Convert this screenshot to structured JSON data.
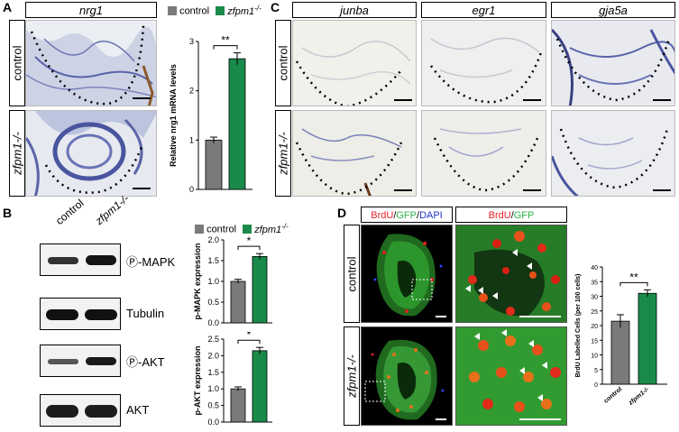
{
  "panels": {
    "A": {
      "label": "A",
      "gene": "nrg1",
      "rows": [
        "control",
        "zfpm1-/-"
      ]
    },
    "B": {
      "label": "B",
      "lanes": [
        "control",
        "zfpm1-/-"
      ],
      "bands": [
        "Ⓟ-MAPK",
        "Tubulin",
        "Ⓟ-AKT",
        "AKT"
      ]
    },
    "C": {
      "label": "C",
      "genes": [
        "junba",
        "egr1",
        "gja5a"
      ],
      "rows": [
        "control",
        "zfpm1-/-"
      ]
    },
    "D": {
      "label": "D",
      "headers": {
        "left": [
          {
            "t": "BrdU",
            "c": "#e8202a"
          },
          {
            "t": "/",
            "c": "#000000"
          },
          {
            "t": "GFP",
            "c": "#2db34a"
          },
          {
            "t": "/",
            "c": "#000000"
          },
          {
            "t": "DAPI",
            "c": "#2233cc"
          }
        ],
        "right": [
          {
            "t": "BrdU",
            "c": "#e8202a"
          },
          {
            "t": "/",
            "c": "#000000"
          },
          {
            "t": "GFP",
            "c": "#2db34a"
          }
        ]
      },
      "rows": [
        "control",
        "zfpm1-/-"
      ]
    }
  },
  "legend": {
    "control": "control",
    "mutant": "zfpm1",
    "mutant_sup": "-/-"
  },
  "colors": {
    "control": "#7a7a7a",
    "mutant": "#1a8a4a"
  },
  "chart_data": [
    {
      "type": "bar",
      "panel": "A",
      "categories": [
        "control",
        "zfpm1-/-"
      ],
      "values": [
        1.0,
        2.65
      ],
      "errors": [
        0.06,
        0.12
      ],
      "ylabel": "Relative nrg1 mRNA levels",
      "ylim": [
        0,
        3
      ],
      "yticks": [
        0,
        1,
        2,
        3
      ],
      "significance": "**"
    },
    {
      "type": "bar",
      "panel": "B-top",
      "categories": [
        "control",
        "zfpm1-/-"
      ],
      "values": [
        1.0,
        1.6
      ],
      "errors": [
        0.05,
        0.07
      ],
      "ylabel": "p-MAPK expression",
      "ylim": [
        0,
        2.0
      ],
      "yticks": [
        0.0,
        0.5,
        1.0,
        1.5,
        2.0
      ],
      "significance": "*"
    },
    {
      "type": "bar",
      "panel": "B-bottom",
      "categories": [
        "control",
        "zfpm1-/-"
      ],
      "values": [
        1.0,
        2.15
      ],
      "errors": [
        0.06,
        0.1
      ],
      "ylabel": "p-AKT expression",
      "ylim": [
        0,
        2.5
      ],
      "yticks": [
        0.0,
        0.5,
        1.0,
        1.5,
        2.0,
        2.5
      ],
      "significance": "*"
    },
    {
      "type": "bar",
      "panel": "D",
      "categories": [
        "control",
        "zfpm1-/-"
      ],
      "values": [
        21.5,
        31
      ],
      "errors": [
        2.2,
        1.2
      ],
      "ylabel": "BrdU Labelled Cells (per 100 cells)",
      "ylim": [
        0,
        40
      ],
      "yticks": [
        0,
        5,
        10,
        15,
        20,
        25,
        30,
        35,
        40
      ],
      "significance": "**"
    }
  ]
}
